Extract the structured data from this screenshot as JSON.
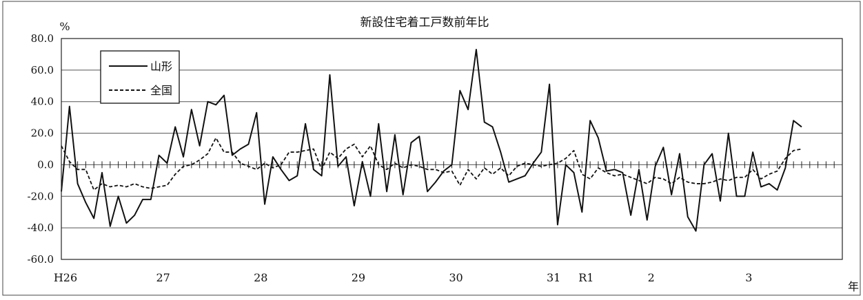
{
  "chart_data": {
    "type": "line",
    "title": "新設住宅着工戸数前年比",
    "ylabel": "%",
    "xlabel": "年",
    "ylim": [
      -60,
      80
    ],
    "yticks": [
      80,
      60,
      40,
      20,
      0,
      -20,
      -40,
      -60
    ],
    "ytick_labels": [
      "80.0",
      "60.0",
      "40.0",
      "20.0",
      "0.0",
      "-20.0",
      "-40.0",
      "-60.0"
    ],
    "x_unit": "month",
    "x_count": 96,
    "xtick_labels": [
      {
        "label": "H26",
        "index": 0
      },
      {
        "label": "27",
        "index": 12
      },
      {
        "label": "28",
        "index": 24
      },
      {
        "label": "29",
        "index": 36
      },
      {
        "label": "30",
        "index": 48
      },
      {
        "label": "31",
        "index": 60
      },
      {
        "label": "R1",
        "index": 64
      },
      {
        "label": "2",
        "index": 72
      },
      {
        "label": "3",
        "index": 84
      }
    ],
    "grid": true,
    "legend_position": "top-left",
    "series": [
      {
        "name": "山形",
        "style": "solid",
        "color": "#111111",
        "values": [
          -17,
          37,
          -12,
          -24,
          -34,
          -5,
          -39,
          -20,
          -37,
          -32,
          -22,
          -22,
          6,
          1,
          24,
          5,
          35,
          12,
          40,
          38,
          44,
          6,
          10,
          13,
          33,
          -25,
          5,
          -3,
          -10,
          -7,
          26,
          -3,
          -7,
          57,
          -1,
          5,
          -26,
          2,
          -20,
          26,
          -17,
          19,
          -19,
          14,
          18,
          -17,
          -11,
          -4,
          0,
          47,
          35,
          73,
          27,
          24,
          8,
          -11,
          -9,
          -7,
          1,
          8,
          51,
          -38,
          0,
          -5,
          -30,
          28,
          17,
          -4,
          -3,
          -5,
          -32,
          -3,
          -35,
          -1,
          11,
          -19,
          7,
          -33,
          -42,
          0,
          7,
          -23,
          20,
          -20,
          -20,
          8,
          -14,
          -12,
          -16,
          -2,
          28,
          24
        ]
      },
      {
        "name": "全国",
        "style": "dashed",
        "color": "#111111",
        "values": [
          12,
          2,
          -3,
          -3,
          -16,
          -12,
          -14,
          -13,
          -14,
          -12,
          -14,
          -15,
          -14,
          -13,
          -6,
          -1,
          0,
          3,
          7,
          17,
          8,
          8,
          1,
          -1,
          -3,
          1,
          -2,
          0,
          8,
          8,
          9,
          10,
          -3,
          8,
          4,
          10,
          13,
          5,
          12,
          0,
          -3,
          1,
          -2,
          0,
          -1,
          -3,
          -3,
          -5,
          -4,
          -13,
          -3,
          -9,
          -2,
          -6,
          -2,
          -7,
          -1,
          1,
          0,
          -1,
          0,
          1,
          4,
          9,
          -6,
          -9,
          -2,
          -5,
          -7,
          -6,
          -8,
          -10,
          -12,
          -8,
          -9,
          -12,
          -8,
          -11,
          -12,
          -12,
          -11,
          -9,
          -10,
          -8,
          -8,
          -3,
          -9,
          -6,
          -4,
          4,
          9,
          10
        ]
      }
    ]
  }
}
